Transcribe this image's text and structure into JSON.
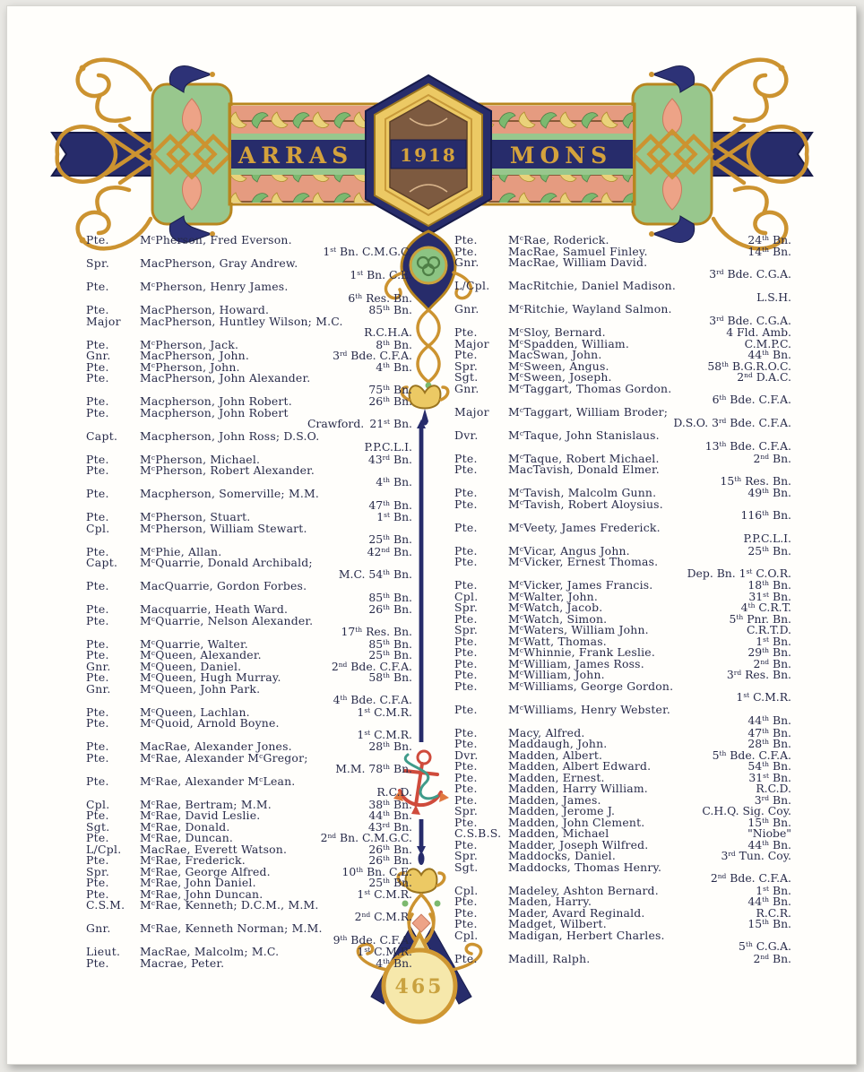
{
  "banner": {
    "left_title": "ARRAS",
    "year": "1918",
    "right_title": "MONS"
  },
  "footer": {
    "page_number": "465"
  },
  "colors": {
    "ink": "#272a49",
    "gold": "#cc9330",
    "navy": "#272c6b",
    "green": "#98c78d",
    "salmon": "#e59b80",
    "cream": "#f6e8ab",
    "brown": "#7d5a40",
    "anchor_red": "#cf4b3c",
    "rope_green": "#3f9b8a",
    "page_number_gold": "#c9a23f"
  },
  "columns": {
    "left": [
      {
        "rank": "Pte.",
        "name": "McPherson, Fred Everson.",
        "unit": "1st Bn. C.M.G.C.",
        "wrap": true
      },
      {
        "rank": "Spr.",
        "name": "MacPherson, Gray Andrew.",
        "unit": "1st Bn. C.E.",
        "wrap": true
      },
      {
        "rank": "Pte.",
        "name": "McPherson, Henry James.",
        "unit": "6th Res. Bn.",
        "wrap": true
      },
      {
        "rank": "Pte.",
        "name": "MacPherson, Howard.",
        "unit": "85th Bn."
      },
      {
        "rank": "Major",
        "name": "MacPherson, Huntley Wilson; M.C.",
        "unit": "R.C.H.A.",
        "wrap": true
      },
      {
        "rank": "Pte.",
        "name": "McPherson, Jack.",
        "unit": "8th Bn."
      },
      {
        "rank": "Gnr.",
        "name": "MacPherson, John.",
        "unit": "3rd Bde. C.F.A."
      },
      {
        "rank": "Pte.",
        "name": "McPherson, John.",
        "unit": "4th Bn."
      },
      {
        "rank": "Pte.",
        "name": "MacPherson, John Alexander.",
        "unit": "75th Bn.",
        "wrap": true
      },
      {
        "rank": "Pte.",
        "name": "Macpherson, John Robert.",
        "unit": "26th Bn."
      },
      {
        "rank": "Pte.",
        "name": "Macpherson, John Robert",
        "cont": "Crawford.",
        "unit": "21st Bn.",
        "wrap": true
      },
      {
        "rank": "Capt.",
        "name": "Macpherson, John Ross; D.S.O.",
        "unit": "P.P.C.L.I.",
        "wrap": true
      },
      {
        "rank": "Pte.",
        "name": "McPherson, Michael.",
        "unit": "43rd Bn."
      },
      {
        "rank": "Pte.",
        "name": "McPherson, Robert Alexander.",
        "unit": "4th Bn.",
        "wrap": true
      },
      {
        "rank": "Pte.",
        "name": "Macpherson, Somerville; M.M.",
        "unit": "47th Bn.",
        "wrap": true
      },
      {
        "rank": "Pte.",
        "name": "McPherson, Stuart.",
        "unit": "1st Bn."
      },
      {
        "rank": "Cpl.",
        "name": "McPherson, William Stewart.",
        "unit": "25th Bn.",
        "wrap": true
      },
      {
        "rank": "Pte.",
        "name": "McPhie, Allan.",
        "unit": "42nd Bn."
      },
      {
        "rank": "Capt.",
        "name": "McQuarrie, Donald Archibald;",
        "unit": "M.C. 54th Bn.",
        "wrap": true
      },
      {
        "rank": "Pte.",
        "name": "MacQuarrie, Gordon Forbes.",
        "unit": "85th Bn.",
        "wrap": true
      },
      {
        "rank": "Pte.",
        "name": "Macquarrie, Heath Ward.",
        "unit": "26th Bn."
      },
      {
        "rank": "Pte.",
        "name": "McQuarrie, Nelson Alexander.",
        "unit": "17th Res. Bn.",
        "wrap": true
      },
      {
        "rank": "Pte.",
        "name": "McQuarrie, Walter.",
        "unit": "85th Bn."
      },
      {
        "rank": "Pte.",
        "name": "McQueen, Alexander.",
        "unit": "25th Bn."
      },
      {
        "rank": "Gnr.",
        "name": "McQueen, Daniel.",
        "unit": "2nd Bde. C.F.A."
      },
      {
        "rank": "Pte.",
        "name": "McQueen, Hugh Murray.",
        "unit": "58th Bn."
      },
      {
        "rank": "Gnr.",
        "name": "McQueen, John Park.",
        "unit": "4th Bde. C.F.A.",
        "wrap": true
      },
      {
        "rank": "Pte.",
        "name": "McQueen, Lachlan.",
        "unit": "1st C.M.R."
      },
      {
        "rank": "Pte.",
        "name": "McQuoid, Arnold Boyne.",
        "unit": "1st C.M.R.",
        "wrap": true
      },
      {
        "rank": "Pte.",
        "name": "MacRae, Alexander Jones.",
        "unit": "28th Bn."
      },
      {
        "rank": "Pte.",
        "name": "McRae, Alexander McGregor;",
        "unit": "M.M. 78th Bn.",
        "wrap": true
      },
      {
        "rank": "Pte.",
        "name": "McRae, Alexander McLean.",
        "unit": "R.C.D.",
        "wrap": true
      },
      {
        "rank": "Cpl.",
        "name": "McRae, Bertram; M.M.",
        "unit": "38th Bn."
      },
      {
        "rank": "Pte.",
        "name": "McRae, David Leslie.",
        "unit": "44th Bn."
      },
      {
        "rank": "Sgt.",
        "name": "McRae, Donald.",
        "unit": "43rd Bn."
      },
      {
        "rank": "Pte.",
        "name": "McRae, Duncan.",
        "unit": "2nd Bn. C.M.G.C."
      },
      {
        "rank": "L/Cpl.",
        "name": "MacRae, Everett Watson.",
        "unit": "26th Bn."
      },
      {
        "rank": "Pte.",
        "name": "McRae, Frederick.",
        "unit": "26th Bn."
      },
      {
        "rank": "Spr.",
        "name": "McRae, George Alfred.",
        "unit": "10th Bn. C.E."
      },
      {
        "rank": "Pte.",
        "name": "McRae, John Daniel.",
        "unit": "25th Bn."
      },
      {
        "rank": "Pte.",
        "name": "McRae, John Duncan.",
        "unit": "1st C.M.R."
      },
      {
        "rank": "C.S.M.",
        "name": "McRae, Kenneth; D.C.M., M.M.",
        "unit": "2nd C.M.R.",
        "wrap": true
      },
      {
        "rank": "Gnr.",
        "name": "McRae, Kenneth Norman; M.M.",
        "unit": "9th Bde. C.F.A.",
        "wrap": true
      },
      {
        "rank": "Lieut.",
        "name": "MacRae, Malcolm; M.C.",
        "unit": "1st C.M.R."
      },
      {
        "rank": "Pte.",
        "name": "Macrae, Peter.",
        "unit": "4th Bn."
      }
    ],
    "right": [
      {
        "rank": "Pte.",
        "name": "McRae, Roderick.",
        "unit": "24th Bn."
      },
      {
        "rank": "Pte.",
        "name": "MacRae, Samuel Finley.",
        "unit": "14th Bn."
      },
      {
        "rank": "Gnr.",
        "name": "MacRae, William David.",
        "unit": "3rd Bde. C.G.A.",
        "wrap": true
      },
      {
        "rank": "L/Cpl.",
        "name": "MacRitchie, Daniel Madison.",
        "unit": "L.S.H.",
        "wrap": true
      },
      {
        "rank": "Gnr.",
        "name": "McRitchie, Wayland Salmon.",
        "unit": "3rd Bde. C.G.A.",
        "wrap": true
      },
      {
        "rank": "Pte.",
        "name": "McSloy, Bernard.",
        "unit": "4 Fld. Amb."
      },
      {
        "rank": "Major",
        "name": "McSpadden, William.",
        "unit": "C.M.P.C."
      },
      {
        "rank": "Pte.",
        "name": "MacSwan, John.",
        "unit": "44th Bn."
      },
      {
        "rank": "Spr.",
        "name": "McSween, Angus.",
        "unit": "58th B.G.R.O.C."
      },
      {
        "rank": "Sgt.",
        "name": "McSween, Joseph.",
        "unit": "2nd D.A.C."
      },
      {
        "rank": "Gnr.",
        "name": "McTaggart, Thomas Gordon.",
        "unit": "6th Bde. C.F.A.",
        "wrap": true
      },
      {
        "rank": "Major",
        "name": "McTaggart, William Broder;",
        "unit": "D.S.O. 3rd Bde. C.F.A.",
        "wrap": true
      },
      {
        "rank": "Dvr.",
        "name": "McTaque, John Stanislaus.",
        "unit": "13th Bde. C.F.A.",
        "wrap": true
      },
      {
        "rank": "Pte.",
        "name": "McTaque, Robert Michael.",
        "unit": "2nd Bn."
      },
      {
        "rank": "Pte.",
        "name": "MacTavish, Donald Elmer.",
        "unit": "15th Res. Bn.",
        "wrap": true
      },
      {
        "rank": "Pte.",
        "name": "McTavish, Malcolm Gunn.",
        "unit": "49th Bn."
      },
      {
        "rank": "Pte.",
        "name": "McTavish, Robert Aloysius.",
        "unit": "116th Bn.",
        "wrap": true
      },
      {
        "rank": "Pte.",
        "name": "McVeety, James Frederick.",
        "unit": "P.P.C.L.I.",
        "wrap": true
      },
      {
        "rank": "Pte.",
        "name": "McVicar, Angus John.",
        "unit": "25th Bn."
      },
      {
        "rank": "Pte.",
        "name": "McVicker, Ernest Thomas.",
        "unit": "Dep. Bn. 1st C.O.R.",
        "wrap": true
      },
      {
        "rank": "Pte.",
        "name": "McVicker, James Francis.",
        "unit": "18th Bn."
      },
      {
        "rank": "Cpl.",
        "name": "McWalter, John.",
        "unit": "31st Bn."
      },
      {
        "rank": "Spr.",
        "name": "McWatch, Jacob.",
        "unit": "4th C.R.T."
      },
      {
        "rank": "Pte.",
        "name": "McWatch, Simon.",
        "unit": "5th Pnr. Bn."
      },
      {
        "rank": "Spr.",
        "name": "McWaters, William John.",
        "unit": "C.R.T.D."
      },
      {
        "rank": "Pte.",
        "name": "McWatt, Thomas.",
        "unit": "1st Bn."
      },
      {
        "rank": "Pte.",
        "name": "McWhinnie, Frank Leslie.",
        "unit": "29th Bn."
      },
      {
        "rank": "Pte.",
        "name": "McWilliam, James Ross.",
        "unit": "2nd Bn."
      },
      {
        "rank": "Pte.",
        "name": "McWilliam, John.",
        "unit": "3rd Res. Bn."
      },
      {
        "rank": "Pte.",
        "name": "McWilliams, George Gordon.",
        "unit": "1st C.M.R.",
        "wrap": true
      },
      {
        "rank": "Pte.",
        "name": "McWilliams, Henry Webster.",
        "unit": "44th Bn.",
        "wrap": true
      },
      {
        "rank": "Pte.",
        "name": "Macy, Alfred.",
        "unit": "47th Bn."
      },
      {
        "rank": "Pte.",
        "name": "Maddaugh, John.",
        "unit": "28th Bn."
      },
      {
        "rank": "Dvr.",
        "name": "Madden, Albert.",
        "unit": "5th Bde. C.F.A."
      },
      {
        "rank": "Pte.",
        "name": "Madden, Albert Edward.",
        "unit": "54th Bn."
      },
      {
        "rank": "Pte.",
        "name": "Madden, Ernest.",
        "unit": "31st Bn."
      },
      {
        "rank": "Pte.",
        "name": "Madden, Harry William.",
        "unit": "R.C.D."
      },
      {
        "rank": "Pte.",
        "name": "Madden, James.",
        "unit": "3rd Bn."
      },
      {
        "rank": "Spr.",
        "name": "Madden, Jerome J.",
        "unit": "C.H.Q. Sig. Coy."
      },
      {
        "rank": "Pte.",
        "name": "Madden, John Clement.",
        "unit": "15th Bn."
      },
      {
        "rank": "C.S.B.S.",
        "name": "Madden, Michael",
        "unit": "\"Niobe\""
      },
      {
        "rank": "Pte.",
        "name": "Madder, Joseph Wilfred.",
        "unit": "44th Bn."
      },
      {
        "rank": "Spr.",
        "name": "Maddocks, Daniel.",
        "unit": "3rd Tun. Coy."
      },
      {
        "rank": "Sgt.",
        "name": "Maddocks, Thomas Henry.",
        "unit": "2nd Bde. C.F.A.",
        "wrap": true
      },
      {
        "rank": "Cpl.",
        "name": "Madeley, Ashton Bernard.",
        "unit": "1st Bn."
      },
      {
        "rank": "Pte.",
        "name": "Maden, Harry.",
        "unit": "44th Bn."
      },
      {
        "rank": "Pte.",
        "name": "Mader, Avard Reginald.",
        "unit": "R.C.R."
      },
      {
        "rank": "Pte.",
        "name": "Madget, Wilbert.",
        "unit": "15th Bn."
      },
      {
        "rank": "Cpl.",
        "name": "Madigan, Herbert Charles.",
        "unit": "5th C.G.A.",
        "wrap": true
      },
      {
        "rank": "Pte.",
        "name": "Madill, Ralph.",
        "unit": "2nd Bn."
      }
    ]
  }
}
